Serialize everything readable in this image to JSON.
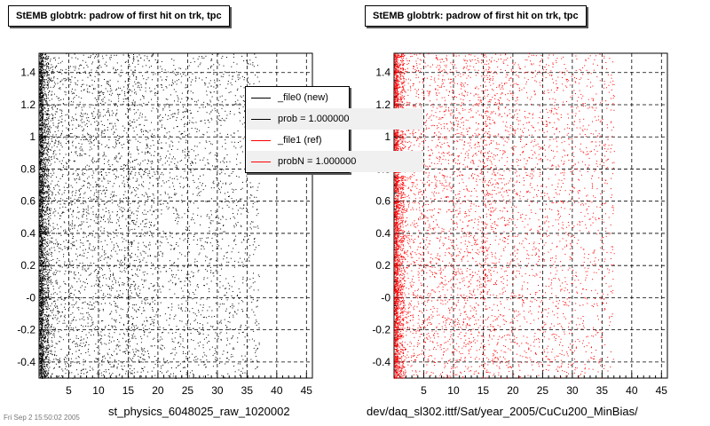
{
  "panels": [
    {
      "title": "StEMB globtrk: padrow of first hit on trk, tpc",
      "caption": "st_physics_6048025_raw_1020002",
      "color": "#000000"
    },
    {
      "title": "StEMB globtrk: padrow of first hit on trk, tpc",
      "caption": "dev/daq_sl302.ittf/Sat/year_2005/CuCu200_MinBias/",
      "color": "#ff0000"
    }
  ],
  "legend": {
    "items": [
      {
        "label": "_file0 (new)",
        "color": "#000000"
      },
      {
        "label": "prob = 1.000000",
        "color": "#000000"
      },
      {
        "label": "_file1 (ref)",
        "color": "#ff0000"
      },
      {
        "label": "probN = 1.000000",
        "color": "#ff0000"
      }
    ]
  },
  "footnote": "Fri Sep  2 15:50:02 2005",
  "chart_data": [
    {
      "type": "scatter",
      "title": "StEMB globtrk: padrow of first hit on trk, tpc",
      "xlabel": "st_physics_6048025_raw_1020002",
      "ylabel": "",
      "xlim": [
        0,
        46
      ],
      "ylim": [
        -0.5,
        1.52
      ],
      "xticks": [
        "5",
        "10",
        "15",
        "20",
        "25",
        "30",
        "35",
        "40",
        "45"
      ],
      "yticks": [
        "-0.4",
        "-0.2",
        "-0",
        "0.2",
        "0.4",
        "0.6",
        "0.8",
        "1",
        "1.2",
        "1.4"
      ],
      "grid": true,
      "series": [
        {
          "name": "_file0 (new)",
          "color": "#000000",
          "description_density": [
            {
              "x": [
                0,
                1.5
              ],
              "density": "very high"
            },
            {
              "x": [
                1.5,
                5
              ],
              "density": "high"
            },
            {
              "x": [
                5,
                13
              ],
              "density": "medium"
            },
            {
              "x": [
                13,
                15
              ],
              "density": "medium-high band"
            },
            {
              "x": [
                15,
                37
              ],
              "density": "medium, decreasing"
            },
            {
              "x": [
                37,
                46
              ],
              "density": "none"
            }
          ]
        }
      ]
    },
    {
      "type": "scatter",
      "title": "StEMB globtrk: padrow of first hit on trk, tpc",
      "xlabel": "dev/daq_sl302.ittf/Sat/year_2005/CuCu200_MinBias/",
      "ylabel": "",
      "xlim": [
        0,
        46
      ],
      "ylim": [
        -0.5,
        1.52
      ],
      "xticks": [
        "5",
        "10",
        "15",
        "20",
        "25",
        "30",
        "35",
        "40",
        "45"
      ],
      "yticks": [
        "-0.4",
        "-0.2",
        "-0",
        "0.2",
        "0.4",
        "0.6",
        "0.8",
        "1",
        "1.2",
        "1.4"
      ],
      "grid": true,
      "series": [
        {
          "name": "_file1 (ref)",
          "color": "#ff0000",
          "description_density": [
            {
              "x": [
                0,
                1.5
              ],
              "density": "very high"
            },
            {
              "x": [
                1.5,
                5
              ],
              "density": "high"
            },
            {
              "x": [
                5,
                13
              ],
              "density": "medium"
            },
            {
              "x": [
                13,
                15
              ],
              "density": "medium-high band"
            },
            {
              "x": [
                15,
                37
              ],
              "density": "medium, decreasing"
            },
            {
              "x": [
                37,
                46
              ],
              "density": "none"
            }
          ]
        }
      ]
    }
  ]
}
